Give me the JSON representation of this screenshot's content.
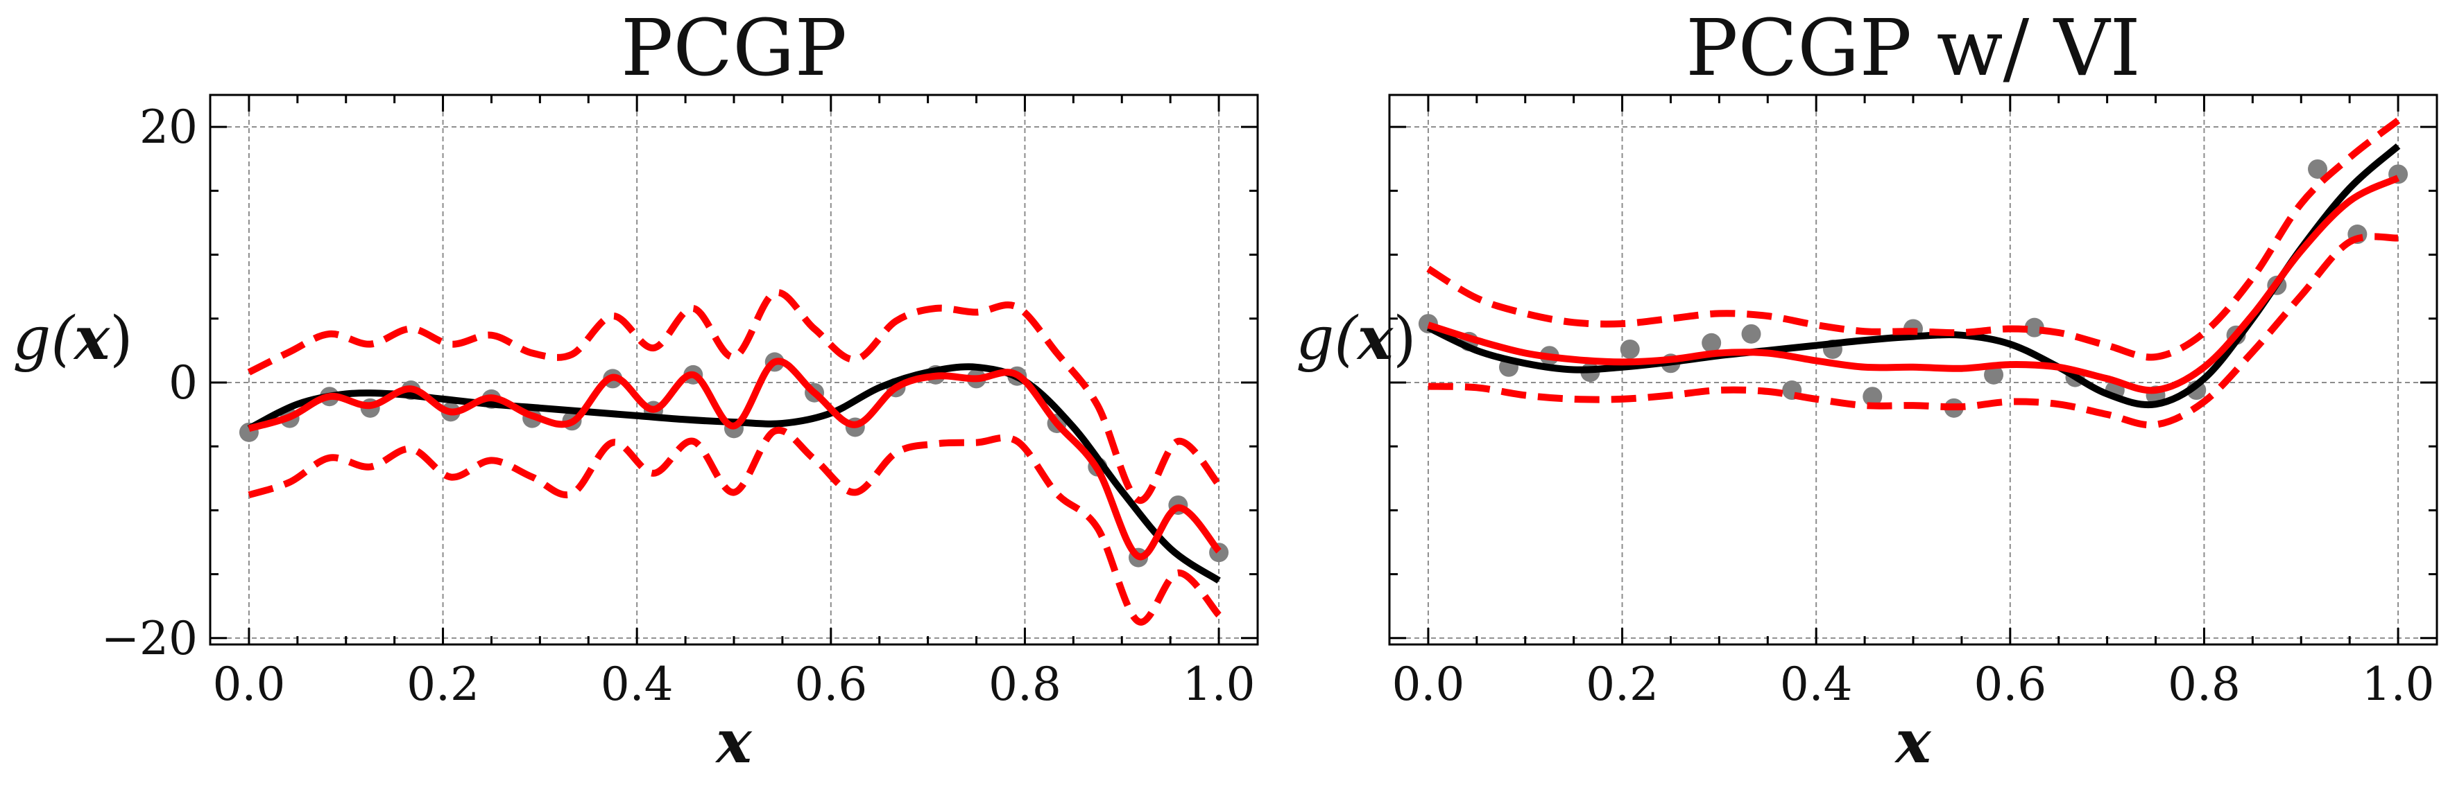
{
  "chart_data": [
    {
      "type": "line",
      "title": "PCGP",
      "xlabel": "x",
      "ylabel": "g(x)",
      "ylabel_prefix": "g(",
      "ylabel_var": "x",
      "ylabel_suffix": ")",
      "xlim": [
        -0.04,
        1.04
      ],
      "ylim": [
        -20.5,
        22.5
      ],
      "xticks": [
        0.0,
        0.2,
        0.4,
        0.6,
        0.8,
        1.0
      ],
      "xtick_labels": [
        "0.0",
        "0.2",
        "0.4",
        "0.6",
        "0.8",
        "1.0"
      ],
      "yticks": [
        -20,
        0,
        20
      ],
      "ytick_labels": [
        "−20",
        "0",
        "20"
      ],
      "show_ytick_labels": true,
      "grid": true,
      "series": [
        {
          "role": "truth",
          "color": "#000000",
          "style": "solid",
          "x": [
            0.0,
            0.05,
            0.1,
            0.15,
            0.2,
            0.25,
            0.3,
            0.35,
            0.4,
            0.45,
            0.5,
            0.55,
            0.6,
            0.65,
            0.7,
            0.75,
            0.8,
            0.85,
            0.9,
            0.95,
            1.0
          ],
          "y": [
            -3.6,
            -1.7,
            -0.9,
            -0.9,
            -1.3,
            -1.7,
            -2.0,
            -2.3,
            -2.6,
            -2.9,
            -3.1,
            -3.2,
            -2.4,
            -0.4,
            0.8,
            1.2,
            0.1,
            -3.5,
            -8.5,
            -13.0,
            -15.5
          ]
        },
        {
          "role": "mean",
          "color": "#ff0000",
          "style": "solid",
          "x": [
            0.0,
            0.042,
            0.083,
            0.125,
            0.167,
            0.208,
            0.25,
            0.292,
            0.333,
            0.375,
            0.417,
            0.458,
            0.5,
            0.542,
            0.583,
            0.625,
            0.667,
            0.708,
            0.75,
            0.792,
            0.833,
            0.875,
            0.917,
            0.958,
            1.0
          ],
          "y": [
            -3.6,
            -2.7,
            -1.1,
            -1.8,
            -0.5,
            -2.3,
            -1.2,
            -2.6,
            -3.1,
            0.4,
            -2.1,
            0.6,
            -3.4,
            1.6,
            -0.8,
            -3.3,
            -0.4,
            0.5,
            0.3,
            0.6,
            -3.2,
            -6.8,
            -13.6,
            -9.8,
            -13.2
          ]
        },
        {
          "role": "upper-bound",
          "color": "#ff0000",
          "style": "dashed",
          "x": [
            0.0,
            0.042,
            0.083,
            0.125,
            0.167,
            0.208,
            0.25,
            0.292,
            0.333,
            0.375,
            0.417,
            0.458,
            0.5,
            0.542,
            0.583,
            0.625,
            0.667,
            0.708,
            0.75,
            0.792,
            0.833,
            0.875,
            0.917,
            0.958,
            1.0
          ],
          "y": [
            0.8,
            2.4,
            3.8,
            3.0,
            4.2,
            3.0,
            3.7,
            2.3,
            2.2,
            5.2,
            2.7,
            5.8,
            2.0,
            7.0,
            4.2,
            1.8,
            4.8,
            5.8,
            5.5,
            5.9,
            2.3,
            -1.8,
            -9.2,
            -4.6,
            -8.0
          ]
        },
        {
          "role": "lower-bound",
          "color": "#ff0000",
          "style": "dashed",
          "x": [
            0.0,
            0.042,
            0.083,
            0.125,
            0.167,
            0.208,
            0.25,
            0.292,
            0.333,
            0.375,
            0.417,
            0.458,
            0.5,
            0.542,
            0.583,
            0.625,
            0.667,
            0.708,
            0.75,
            0.792,
            0.833,
            0.875,
            0.917,
            0.958,
            1.0
          ],
          "y": [
            -8.8,
            -7.8,
            -5.9,
            -6.6,
            -5.2,
            -7.4,
            -6.1,
            -7.4,
            -8.7,
            -4.7,
            -7.1,
            -4.6,
            -8.6,
            -3.8,
            -6.0,
            -8.6,
            -5.5,
            -4.8,
            -4.7,
            -4.6,
            -8.7,
            -11.4,
            -18.7,
            -14.9,
            -18.2
          ]
        },
        {
          "role": "observations",
          "type": "scatter",
          "color": "#808080",
          "x": [
            0.0,
            0.042,
            0.083,
            0.125,
            0.167,
            0.208,
            0.25,
            0.292,
            0.333,
            0.375,
            0.417,
            0.458,
            0.5,
            0.542,
            0.583,
            0.625,
            0.667,
            0.708,
            0.75,
            0.792,
            0.833,
            0.875,
            0.917,
            0.958,
            1.0
          ],
          "y": [
            -3.9,
            -2.8,
            -1.1,
            -2.0,
            -0.6,
            -2.3,
            -1.3,
            -2.8,
            -3.0,
            0.3,
            -2.2,
            0.6,
            -3.6,
            1.6,
            -0.8,
            -3.5,
            -0.4,
            0.6,
            0.3,
            0.5,
            -3.2,
            -6.6,
            -13.7,
            -9.6,
            -13.3
          ]
        }
      ]
    },
    {
      "type": "line",
      "title": "PCGP w/ VI",
      "xlabel": "x",
      "ylabel": "g(x)",
      "ylabel_prefix": "g(",
      "ylabel_var": "x",
      "ylabel_suffix": ")",
      "xlim": [
        -0.04,
        1.04
      ],
      "ylim": [
        -20.5,
        22.5
      ],
      "xticks": [
        0.0,
        0.2,
        0.4,
        0.6,
        0.8,
        1.0
      ],
      "xtick_labels": [
        "0.0",
        "0.2",
        "0.4",
        "0.6",
        "0.8",
        "1.0"
      ],
      "yticks": [
        -20,
        0,
        20
      ],
      "ytick_labels": [
        "−20",
        "0",
        "20"
      ],
      "show_ytick_labels": false,
      "grid": true,
      "series": [
        {
          "role": "truth",
          "color": "#000000",
          "style": "solid",
          "x": [
            0.0,
            0.05,
            0.1,
            0.15,
            0.2,
            0.25,
            0.3,
            0.35,
            0.4,
            0.45,
            0.5,
            0.55,
            0.6,
            0.65,
            0.7,
            0.75,
            0.8,
            0.85,
            0.9,
            0.95,
            1.0
          ],
          "y": [
            4.3,
            2.5,
            1.5,
            1.0,
            1.2,
            1.6,
            2.1,
            2.5,
            2.9,
            3.3,
            3.6,
            3.7,
            3.0,
            1.2,
            -0.9,
            -1.7,
            0.3,
            5.0,
            10.5,
            15.2,
            18.5
          ]
        },
        {
          "role": "mean",
          "color": "#ff0000",
          "style": "solid",
          "x": [
            0.0,
            0.05,
            0.1,
            0.15,
            0.2,
            0.25,
            0.3,
            0.35,
            0.4,
            0.45,
            0.5,
            0.55,
            0.6,
            0.65,
            0.7,
            0.75,
            0.8,
            0.85,
            0.9,
            0.95,
            1.0
          ],
          "y": [
            4.5,
            3.3,
            2.3,
            1.8,
            1.6,
            1.8,
            2.3,
            2.3,
            1.7,
            1.2,
            1.2,
            1.1,
            1.4,
            1.2,
            0.3,
            -0.6,
            1.2,
            5.3,
            10.3,
            14.2,
            16.0
          ]
        },
        {
          "role": "upper-bound",
          "color": "#ff0000",
          "style": "dashed",
          "x": [
            0.0,
            0.05,
            0.1,
            0.15,
            0.2,
            0.25,
            0.3,
            0.35,
            0.4,
            0.45,
            0.5,
            0.55,
            0.6,
            0.65,
            0.7,
            0.75,
            0.8,
            0.85,
            0.9,
            0.95,
            1.0
          ],
          "y": [
            8.9,
            6.6,
            5.4,
            4.7,
            4.6,
            5.0,
            5.4,
            5.2,
            4.5,
            4.0,
            4.0,
            3.9,
            4.2,
            3.9,
            2.9,
            2.0,
            3.9,
            8.2,
            14.0,
            17.6,
            20.5
          ]
        },
        {
          "role": "lower-bound",
          "color": "#ff0000",
          "style": "dashed",
          "x": [
            0.0,
            0.05,
            0.1,
            0.15,
            0.2,
            0.25,
            0.3,
            0.35,
            0.4,
            0.45,
            0.5,
            0.55,
            0.6,
            0.65,
            0.7,
            0.75,
            0.8,
            0.85,
            0.9,
            0.95,
            1.0
          ],
          "y": [
            -0.3,
            -0.4,
            -1.0,
            -1.3,
            -1.3,
            -1.0,
            -0.6,
            -0.7,
            -1.3,
            -1.8,
            -1.8,
            -1.9,
            -1.5,
            -1.7,
            -2.5,
            -3.3,
            -1.5,
            2.4,
            6.8,
            11.0,
            11.3
          ]
        },
        {
          "role": "observations",
          "type": "scatter",
          "color": "#808080",
          "x": [
            0.0,
            0.042,
            0.083,
            0.125,
            0.167,
            0.208,
            0.25,
            0.292,
            0.333,
            0.375,
            0.417,
            0.458,
            0.5,
            0.542,
            0.583,
            0.625,
            0.667,
            0.708,
            0.75,
            0.792,
            0.833,
            0.875,
            0.917,
            0.958,
            1.0
          ],
          "y": [
            4.6,
            3.2,
            1.2,
            2.1,
            0.8,
            2.6,
            1.5,
            3.1,
            3.8,
            -0.6,
            2.6,
            -1.1,
            4.2,
            -2.0,
            0.6,
            4.3,
            0.4,
            -0.6,
            -1.0,
            -0.6,
            3.7,
            7.6,
            16.7,
            11.6,
            16.3
          ]
        }
      ]
    }
  ]
}
